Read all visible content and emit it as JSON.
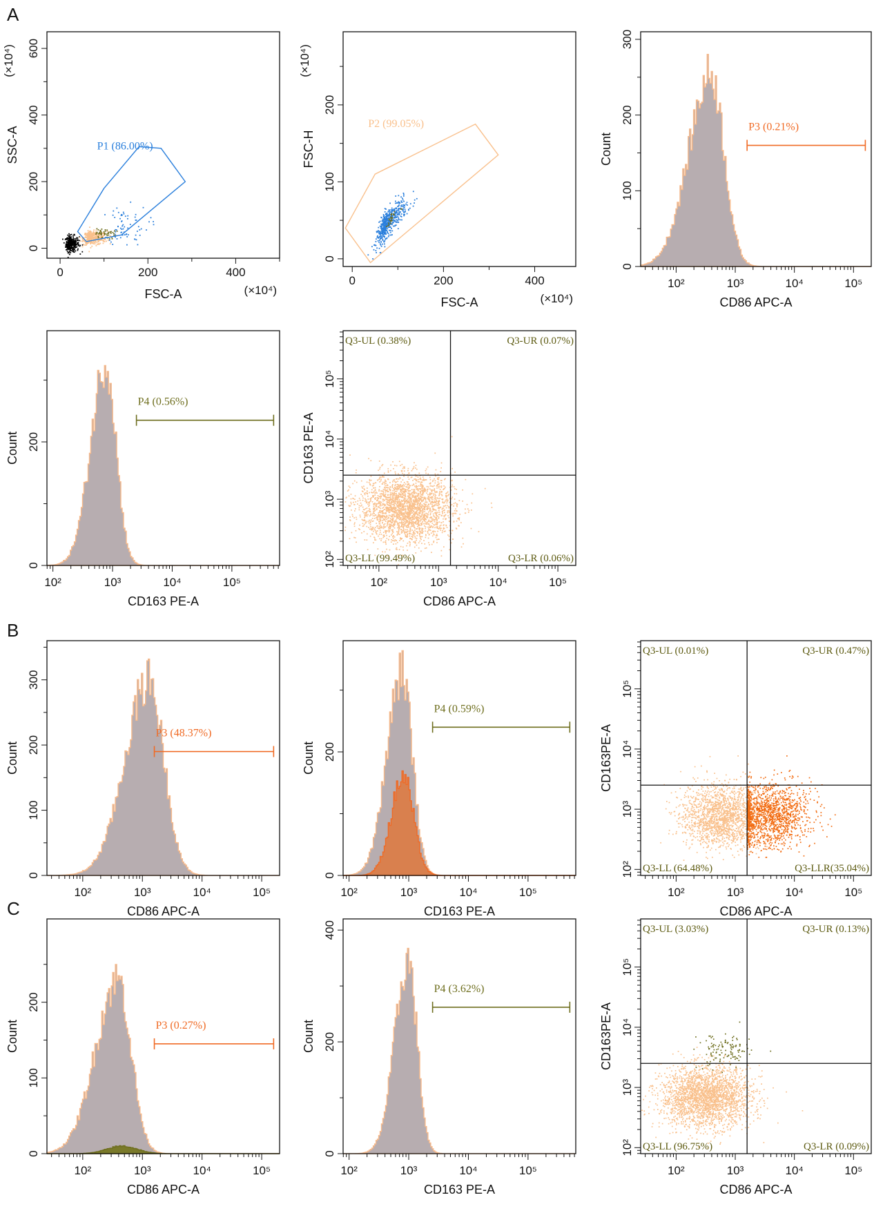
{
  "colors": {
    "grey_fill": "#b7adb0",
    "orange_outline": "#f7b98a",
    "orange_fill": "#d9804e",
    "orange_line": "#f06a24",
    "olive": "#6e6e1e",
    "blue": "#2a7fdc",
    "peach": "#f9c08c",
    "dark_orange": "#f26b10",
    "black": "#000000"
  },
  "panel_labels": [
    "A",
    "B",
    "C"
  ],
  "chart_data": [
    {
      "id": "A1",
      "type": "scatter",
      "xlabel": "FSC-A",
      "ylabel": "SSC-A",
      "x_multiplier": "(×10⁴)",
      "y_multiplier": "(×10⁴)",
      "xlim": [
        -30,
        500
      ],
      "ylim": [
        -30,
        650
      ],
      "x_ticks": [
        0,
        200,
        400
      ],
      "y_ticks": [
        0,
        200,
        400,
        600
      ],
      "gate": {
        "name": "P1",
        "label": "P1 (86.00%)",
        "color": "#2a7fdc",
        "polygon": [
          [
            40,
            50
          ],
          [
            100,
            180
          ],
          [
            180,
            305
          ],
          [
            230,
            300
          ],
          [
            285,
            200
          ],
          [
            140,
            40
          ],
          [
            60,
            20
          ]
        ]
      },
      "populations": [
        {
          "name": "debris",
          "color": "#000000",
          "center": [
            22,
            15
          ],
          "spread": [
            10,
            12
          ],
          "count": 320
        },
        {
          "name": "cells",
          "color": "#f9c08c",
          "center": [
            70,
            32
          ],
          "spread": [
            18,
            10
          ],
          "count": 380
        },
        {
          "name": "p1-high",
          "color": "#2a7fdc",
          "center": [
            140,
            70
          ],
          "spread": [
            30,
            30
          ],
          "count": 70
        },
        {
          "name": "olive",
          "color": "#6e6e1e",
          "center": [
            95,
            45
          ],
          "spread": [
            15,
            8
          ],
          "count": 50
        }
      ]
    },
    {
      "id": "A2",
      "type": "scatter",
      "xlabel": "FSC-A",
      "ylabel": "FSC-H",
      "x_multiplier": "(×10⁴)",
      "y_multiplier": "(×10⁴)",
      "xlim": [
        -20,
        490
      ],
      "ylim": [
        -10,
        295
      ],
      "x_ticks": [
        0,
        200,
        400
      ],
      "y_ticks": [
        0,
        100,
        200
      ],
      "gate": {
        "name": "P2",
        "label": "P2 (99.05%)",
        "color": "#f9c08c",
        "polygon": [
          [
            -15,
            40
          ],
          [
            50,
            110
          ],
          [
            270,
            175
          ],
          [
            320,
            135
          ],
          [
            40,
            -5
          ]
        ]
      },
      "populations": [
        {
          "name": "singlets",
          "color": "#2a7fdc",
          "center": [
            75,
            48
          ],
          "spread": [
            22,
            10
          ],
          "count": 520,
          "correlated": 0.55
        },
        {
          "name": "olive",
          "color": "#6e6e1e",
          "center": [
            85,
            55
          ],
          "spread": [
            10,
            5
          ],
          "count": 25,
          "correlated": 0.5
        }
      ]
    },
    {
      "id": "A3",
      "type": "histogram",
      "xlabel": "CD86 APC-A",
      "ylabel": "Count",
      "xlim_log": [
        1.4,
        5.3
      ],
      "ylim": [
        0,
        310
      ],
      "x_ticks": [
        2,
        3,
        4,
        5
      ],
      "y_ticks": [
        0,
        100,
        200,
        300
      ],
      "histograms": [
        {
          "name": "total",
          "peak_log": 2.58,
          "sigma": 0.22,
          "height": 255,
          "skew_left": 1.7,
          "fill": "#b7adb0",
          "stroke": "#f7b98a"
        }
      ],
      "gates": [
        {
          "label": "P3 (0.21%)",
          "color": "#f06a24",
          "from_log": 3.2,
          "to_log": 5.2,
          "y": 160
        }
      ]
    },
    {
      "id": "A4",
      "type": "histogram",
      "xlabel": "CD163 PE-A",
      "ylabel": "Count",
      "xlim_log": [
        1.9,
        5.8
      ],
      "ylim": [
        0,
        380
      ],
      "x_ticks": [
        2,
        3,
        4,
        5
      ],
      "y_ticks": [
        0,
        200
      ],
      "histograms": [
        {
          "name": "total",
          "peak_log": 2.88,
          "sigma": 0.17,
          "height": 330,
          "skew_left": 1.5,
          "fill": "#b7adb0",
          "stroke": "#f7b98a"
        }
      ],
      "gates": [
        {
          "label": "P4 (0.56%)",
          "color": "#6e6e1e",
          "from_log": 3.4,
          "to_log": 5.7,
          "y": 235
        }
      ]
    },
    {
      "id": "A5",
      "type": "scatter-quadrant",
      "xlabel": "CD86 APC-A",
      "ylabel": "CD163 PE-A",
      "xlim_log": [
        1.4,
        5.3
      ],
      "ylim_log": [
        1.9,
        5.8
      ],
      "x_ticks": [
        2,
        3,
        4,
        5
      ],
      "y_ticks": [
        2,
        3,
        4,
        5
      ],
      "divider": [
        3.2,
        3.4
      ],
      "quadrants": {
        "UL": "Q3-UL (0.38%)",
        "UR": "Q3-UR (0.07%)",
        "LL": "Q3-LL (99.49%)",
        "LR": "Q3-LR (0.06%)"
      },
      "populations": [
        {
          "name": "cells",
          "color": "#f9c08c",
          "center": [
            2.45,
            2.85
          ],
          "spread": [
            0.4,
            0.28
          ],
          "count": 2600
        }
      ]
    },
    {
      "id": "B1",
      "type": "histogram",
      "xlabel": "CD86 APC-A",
      "ylabel": "Count",
      "xlim_log": [
        1.4,
        5.3
      ],
      "ylim": [
        0,
        360
      ],
      "x_ticks": [
        2,
        3,
        4,
        5
      ],
      "y_ticks": [
        0,
        100,
        200,
        300
      ],
      "histograms": [
        {
          "name": "total",
          "peak_log": 3.1,
          "sigma": 0.25,
          "height": 300,
          "skew_left": 1.6,
          "fill": "#b7adb0",
          "stroke": "#f7b98a"
        }
      ],
      "gates": [
        {
          "label": "P3 (48.37%)",
          "color": "#f06a24",
          "from_log": 3.2,
          "to_log": 5.2,
          "y": 190
        }
      ]
    },
    {
      "id": "B2",
      "type": "histogram",
      "xlabel": "CD163 PE-A",
      "ylabel": "Count",
      "xlim_log": [
        1.9,
        5.8
      ],
      "ylim": [
        0,
        380
      ],
      "x_ticks": [
        2,
        3,
        4,
        5
      ],
      "y_ticks": [
        0,
        200
      ],
      "histograms": [
        {
          "name": "total",
          "peak_log": 2.88,
          "sigma": 0.17,
          "height": 330,
          "skew_left": 1.5,
          "fill": "#b7adb0",
          "stroke": "#f7b98a"
        },
        {
          "name": "P3",
          "peak_log": 2.9,
          "sigma": 0.17,
          "height": 160,
          "skew_left": 1.2,
          "fill": "#d9804e",
          "stroke": "#f06a24"
        }
      ],
      "gates": [
        {
          "label": "P4 (0.59%)",
          "color": "#6e6e1e",
          "from_log": 3.4,
          "to_log": 5.7,
          "y": 240
        }
      ]
    },
    {
      "id": "B3",
      "type": "scatter-quadrant",
      "xlabel": "CD86 APC-A",
      "ylabel": "CD163PE-A",
      "xlim_log": [
        1.4,
        5.3
      ],
      "ylim_log": [
        1.9,
        5.8
      ],
      "x_ticks": [
        2,
        3,
        4,
        5
      ],
      "y_ticks": [
        2,
        3,
        4,
        5
      ],
      "divider": [
        3.2,
        3.4
      ],
      "quadrants": {
        "UL": "Q3-UL (0.01%)",
        "UR": "Q3-UR (0.47%)",
        "LL": "Q3-LL (64.48%)",
        "LR": "Q3-LLR(35.04%)"
      },
      "populations": [
        {
          "name": "P3-neg",
          "color": "#f9c08c",
          "center": [
            2.75,
            2.9
          ],
          "spread": [
            0.33,
            0.26
          ],
          "count": 1700
        },
        {
          "name": "P3-pos",
          "color": "#f26b10",
          "center": [
            3.55,
            2.9
          ],
          "spread": [
            0.36,
            0.26
          ],
          "count": 1500,
          "min_x": 3.2
        }
      ]
    },
    {
      "id": "C1",
      "type": "histogram",
      "xlabel": "CD86 APC-A",
      "ylabel": "Count",
      "xlim_log": [
        1.4,
        5.3
      ],
      "ylim": [
        0,
        310
      ],
      "x_ticks": [
        2,
        3,
        4,
        5
      ],
      "y_ticks": [
        0,
        100,
        200
      ],
      "histograms": [
        {
          "name": "total",
          "peak_log": 2.58,
          "sigma": 0.22,
          "height": 230,
          "skew_left": 1.7,
          "fill": "#b7adb0",
          "stroke": "#f7b98a"
        },
        {
          "name": "P4",
          "peak_log": 2.65,
          "sigma": 0.25,
          "height": 10,
          "skew_left": 1.0,
          "fill": "#7a7a2a",
          "stroke": "#6e6e1e"
        }
      ],
      "gates": [
        {
          "label": "P3 (0.27%)",
          "color": "#f06a24",
          "from_log": 3.2,
          "to_log": 5.2,
          "y": 145
        }
      ]
    },
    {
      "id": "C2",
      "type": "histogram",
      "xlabel": "CD163 PE-A",
      "ylabel": "Count",
      "xlim_log": [
        1.9,
        5.8
      ],
      "ylim": [
        0,
        420
      ],
      "x_ticks": [
        2,
        3,
        4,
        5
      ],
      "y_ticks": [
        0,
        200,
        400
      ],
      "histograms": [
        {
          "name": "total",
          "peak_log": 2.98,
          "sigma": 0.15,
          "height": 345,
          "skew_left": 1.5,
          "fill": "#b7adb0",
          "stroke": "#f7b98a"
        }
      ],
      "gates": [
        {
          "label": "P4 (3.62%)",
          "color": "#6e6e1e",
          "from_log": 3.4,
          "to_log": 5.7,
          "y": 262
        }
      ]
    },
    {
      "id": "C3",
      "type": "scatter-quadrant",
      "xlabel": "CD86 APC-A",
      "ylabel": "CD163PE-A",
      "xlim_log": [
        1.4,
        5.3
      ],
      "ylim_log": [
        1.9,
        5.8
      ],
      "x_ticks": [
        2,
        3,
        4,
        5
      ],
      "y_ticks": [
        2,
        3,
        4,
        5
      ],
      "divider": [
        3.2,
        3.4
      ],
      "quadrants": {
        "UL": "Q3-UL (3.03%)",
        "UR": "Q3-UR (0.13%)",
        "LL": "Q3-LL (96.75%)",
        "LR": "Q3-LR (0.09%)"
      },
      "populations": [
        {
          "name": "cells",
          "color": "#f9c08c",
          "center": [
            2.5,
            2.85
          ],
          "spread": [
            0.38,
            0.25
          ],
          "count": 2400
        },
        {
          "name": "olive",
          "color": "#6e6e1e",
          "center": [
            2.8,
            3.6
          ],
          "spread": [
            0.22,
            0.15
          ],
          "count": 120
        }
      ]
    }
  ]
}
